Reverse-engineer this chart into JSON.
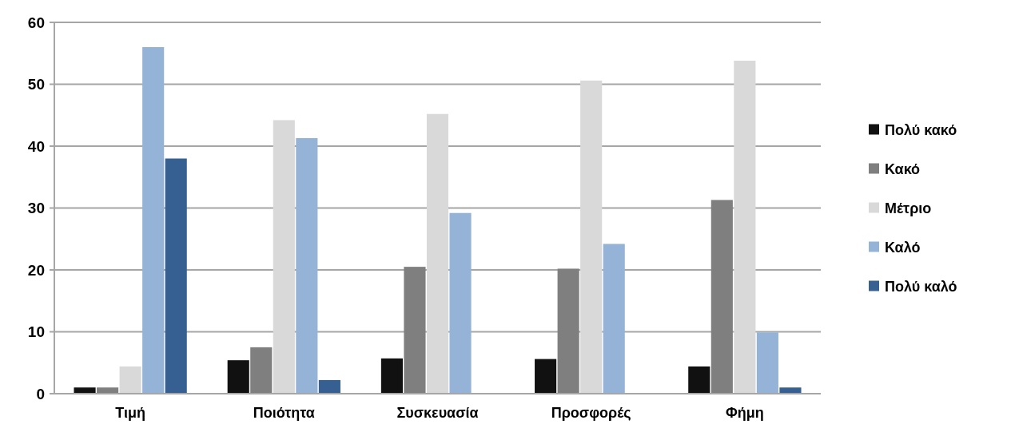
{
  "chart_data": {
    "type": "bar",
    "categories": [
      "Τιμή",
      "Ποιότητα",
      "Συσκευασία",
      "Προσφορές",
      "Φήμη"
    ],
    "series": [
      {
        "name": "Πολύ κακό",
        "color": "#111111",
        "values": [
          1,
          5.4,
          5.7,
          5.6,
          4.4
        ]
      },
      {
        "name": "Κακό",
        "color": "#7f7f7f",
        "values": [
          1,
          7.5,
          20.5,
          20.2,
          31.3
        ]
      },
      {
        "name": "Μέτριο",
        "color": "#d9d9d9",
        "values": [
          4.4,
          44.2,
          45.2,
          50.6,
          53.8
        ]
      },
      {
        "name": "Καλό",
        "color": "#95b3d7",
        "values": [
          56,
          41.3,
          29.2,
          24.2,
          9.9
        ]
      },
      {
        "name": "Πολύ καλό",
        "color": "#366092",
        "values": [
          38,
          2.2,
          0,
          0,
          1
        ]
      }
    ],
    "ylim": [
      0,
      60
    ],
    "yticks": [
      0,
      10,
      20,
      30,
      40,
      50,
      60
    ],
    "grid": "y",
    "legend": "right"
  }
}
